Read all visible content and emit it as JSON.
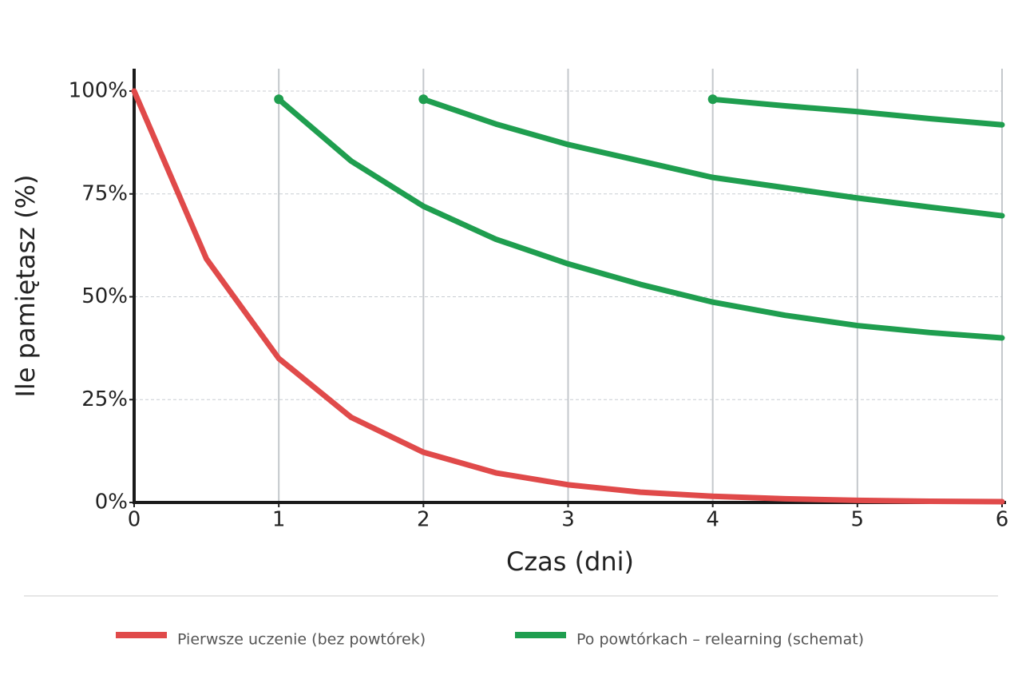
{
  "chart_data": {
    "type": "line",
    "xlabel": "Czas (dni)",
    "ylabel": "Ile pamiętasz (%)",
    "xlim": [
      0,
      6
    ],
    "ylim": [
      0,
      100
    ],
    "xticks": [
      0,
      1,
      2,
      3,
      4,
      5,
      6
    ],
    "yticks": [
      {
        "value": 0,
        "label": "0%"
      },
      {
        "value": 25,
        "label": "25%"
      },
      {
        "value": 50,
        "label": "50%"
      },
      {
        "value": 75,
        "label": "75%"
      },
      {
        "value": 100,
        "label": "100%"
      }
    ],
    "grid": true,
    "legend": "bottom",
    "series": [
      {
        "name": "Pierwsze uczenie (bez powtórek)",
        "color": "#e04a4a",
        "segments": [
          {
            "x": [
              0,
              0.5,
              1,
              1.5,
              2,
              2.5,
              3,
              3.5,
              4,
              4.5,
              5,
              5.5,
              6
            ],
            "values": [
              100,
              59.2,
              35,
              20.7,
              12.2,
              7.2,
              4.3,
              2.5,
              1.5,
              0.9,
              0.5,
              0.3,
              0.2
            ]
          }
        ]
      },
      {
        "name": "Po powtórkach – relearning (schemat)",
        "color": "#1f9e4f",
        "markers": true,
        "segments": [
          {
            "x": [
              1,
              1.5,
              2,
              2.5,
              3,
              3.5,
              4,
              4.5,
              5,
              5.5,
              6
            ],
            "values": [
              98,
              83,
              72,
              64,
              58,
              53,
              48.7,
              45.5,
              43,
              41.3,
              40
            ]
          },
          {
            "x": [
              2,
              2.5,
              3,
              3.5,
              4,
              4.5,
              5,
              5.5,
              6
            ],
            "values": [
              98,
              92,
              87,
              83,
              79,
              76.5,
              74,
              71.8,
              69.7
            ]
          },
          {
            "x": [
              4,
              4.5,
              5,
              5.5,
              6
            ],
            "values": [
              98,
              96.4,
              95,
              93.3,
              91.8
            ]
          }
        ]
      }
    ]
  }
}
